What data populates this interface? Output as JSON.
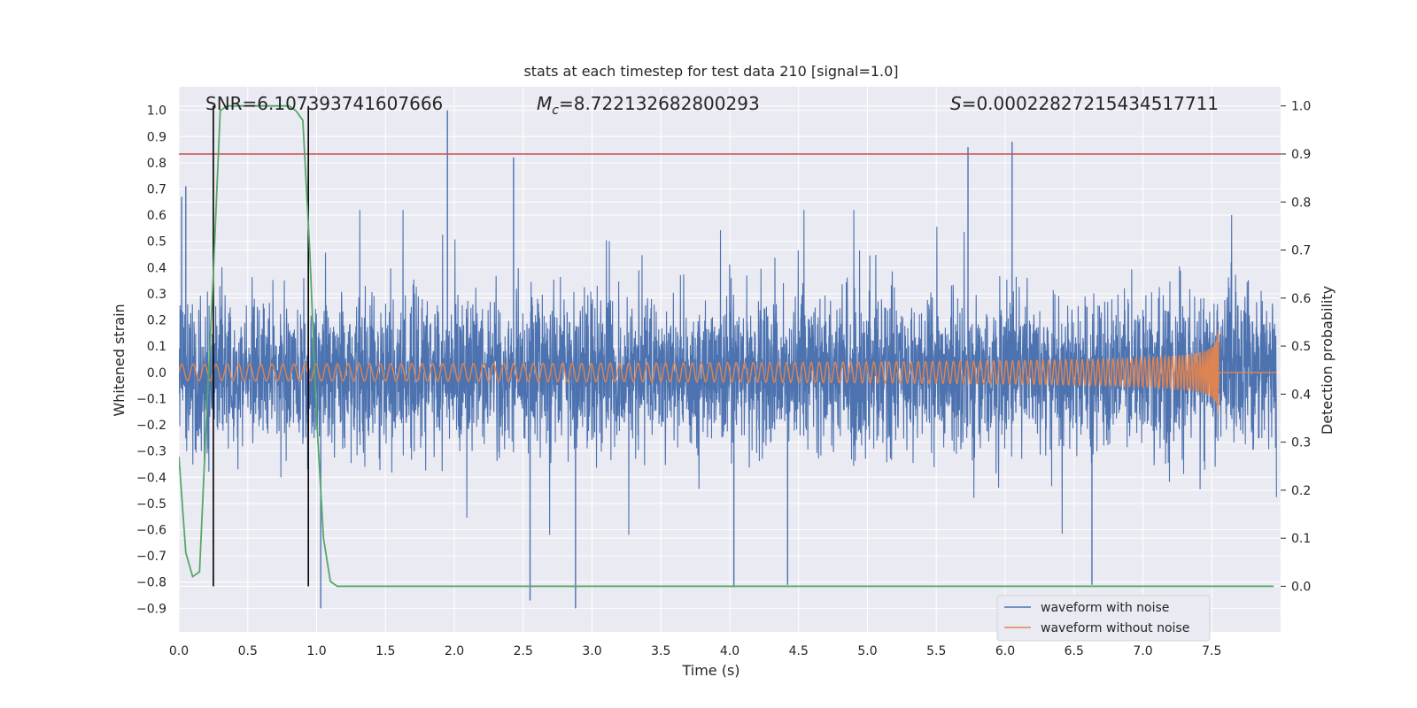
{
  "chart_data": {
    "type": "line",
    "title": "stats at each timestep for test data 210 [signal=1.0]",
    "xlabel": "Time (s)",
    "ylabel_left": "Whitened strain",
    "ylabel_right": "Detection probability",
    "xlim": [
      0.0,
      8.0
    ],
    "ylim_left": [
      -0.99,
      1.09
    ],
    "ylim_right": [
      -0.095,
      1.04
    ],
    "x_ticks": [
      "0.0",
      "0.5",
      "1.0",
      "1.5",
      "2.0",
      "2.5",
      "3.0",
      "3.5",
      "4.0",
      "4.5",
      "5.0",
      "5.5",
      "6.0",
      "6.5",
      "7.0",
      "7.5"
    ],
    "y_ticks_left": [
      "1.0",
      "0.9",
      "0.8",
      "0.7",
      "0.6",
      "0.5",
      "0.4",
      "0.3",
      "0.2",
      "0.1",
      "0.0",
      "−0.1",
      "−0.2",
      "−0.3",
      "−0.4",
      "−0.5",
      "−0.6",
      "−0.7",
      "−0.8",
      "−0.9"
    ],
    "y_ticks_right": [
      "1.0",
      "0.9",
      "0.8",
      "0.7",
      "0.6",
      "0.5",
      "0.4",
      "0.3",
      "0.2",
      "0.1",
      "0.0"
    ],
    "grid": true,
    "legend_position": "lower-right",
    "annotations": {
      "snr": "SNR=6.107393741607666",
      "mc_symbol": "M",
      "mc_subscript": "c",
      "mc_value": "=8.722132682800293",
      "s_symbol": "S",
      "s_value": "=0.00022827215434517711"
    },
    "threshold_right": 0.9,
    "vertical_lines_x": [
      0.25,
      0.94
    ],
    "series": [
      {
        "name": "waveform with noise",
        "color": "#4c72b0",
        "kind": "noise",
        "amplitude_typical": 0.45,
        "peaks": [
          [
            0.02,
            0.67
          ],
          [
            0.05,
            0.71
          ],
          [
            1.95,
            1.0
          ],
          [
            2.43,
            0.82
          ],
          [
            5.73,
            0.86
          ],
          [
            6.05,
            0.88
          ],
          [
            2.55,
            -0.87
          ],
          [
            2.88,
            -0.9
          ],
          [
            4.03,
            -0.82
          ],
          [
            4.42,
            -0.81
          ],
          [
            6.63,
            -0.81
          ],
          [
            1.03,
            -0.9
          ]
        ]
      },
      {
        "name": "waveform without noise",
        "color": "#dd8452",
        "kind": "chirp",
        "merger_time": 7.55,
        "peak_amplitude": 0.23
      },
      {
        "name": "detection probability",
        "color": "#55a868",
        "kind": "probability",
        "x": [
          0.0,
          0.05,
          0.1,
          0.15,
          0.2,
          0.25,
          0.3,
          0.35,
          0.4,
          0.5,
          0.6,
          0.7,
          0.8,
          0.85,
          0.9,
          0.95,
          1.0,
          1.05,
          1.1,
          1.15,
          1.2,
          1.5,
          2.0,
          3.0,
          4.0,
          5.0,
          6.0,
          7.0,
          7.95
        ],
        "y": [
          0.27,
          0.07,
          0.02,
          0.03,
          0.35,
          0.65,
          0.99,
          1.0,
          1.0,
          1.0,
          1.0,
          1.0,
          1.0,
          0.99,
          0.97,
          0.7,
          0.35,
          0.1,
          0.01,
          0.0,
          0.0,
          0.0,
          0.0,
          0.0,
          0.0,
          0.0,
          0.0,
          0.0,
          0.0
        ]
      }
    ]
  }
}
